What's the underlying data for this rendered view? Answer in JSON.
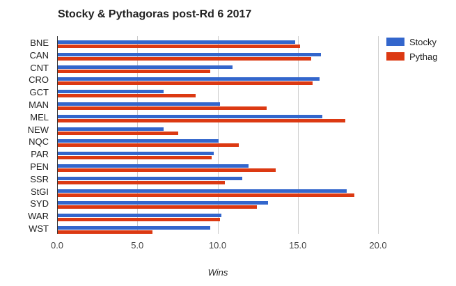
{
  "chart_data": {
    "type": "bar",
    "orientation": "horizontal",
    "title": "Stocky & Pythagoras post-Rd 6 2017",
    "xlabel": "Wins",
    "ylabel": "",
    "xlim": [
      0,
      20
    ],
    "x_ticks": [
      "0.0",
      "5.0",
      "10.0",
      "15.0",
      "20.0"
    ],
    "grid": true,
    "legend_position": "right",
    "categories": [
      "BNE",
      "CAN",
      "CNT",
      "CRO",
      "GCT",
      "MAN",
      "MEL",
      "NEW",
      "NQC",
      "PAR",
      "PEN",
      "SSR",
      "StGI",
      "SYD",
      "WAR",
      "WST"
    ],
    "series": [
      {
        "name": "Stocky",
        "color": "#3366cc",
        "values": [
          14.8,
          16.4,
          10.9,
          16.3,
          6.6,
          10.1,
          16.5,
          6.6,
          10.0,
          9.7,
          11.9,
          11.5,
          18.0,
          13.1,
          10.2,
          9.5
        ]
      },
      {
        "name": "Pythag",
        "color": "#dc3912",
        "values": [
          15.1,
          15.8,
          9.5,
          15.9,
          8.6,
          13.0,
          17.9,
          7.5,
          11.3,
          9.6,
          13.6,
          10.4,
          18.5,
          12.4,
          10.1,
          5.9
        ]
      }
    ]
  },
  "title": "Stocky & Pythagoras post-Rd 6 2017",
  "xlabel": "Wins",
  "legend": [
    {
      "label": "Stocky",
      "color": "#3366cc"
    },
    {
      "label": "Pythag",
      "color": "#dc3912"
    }
  ]
}
